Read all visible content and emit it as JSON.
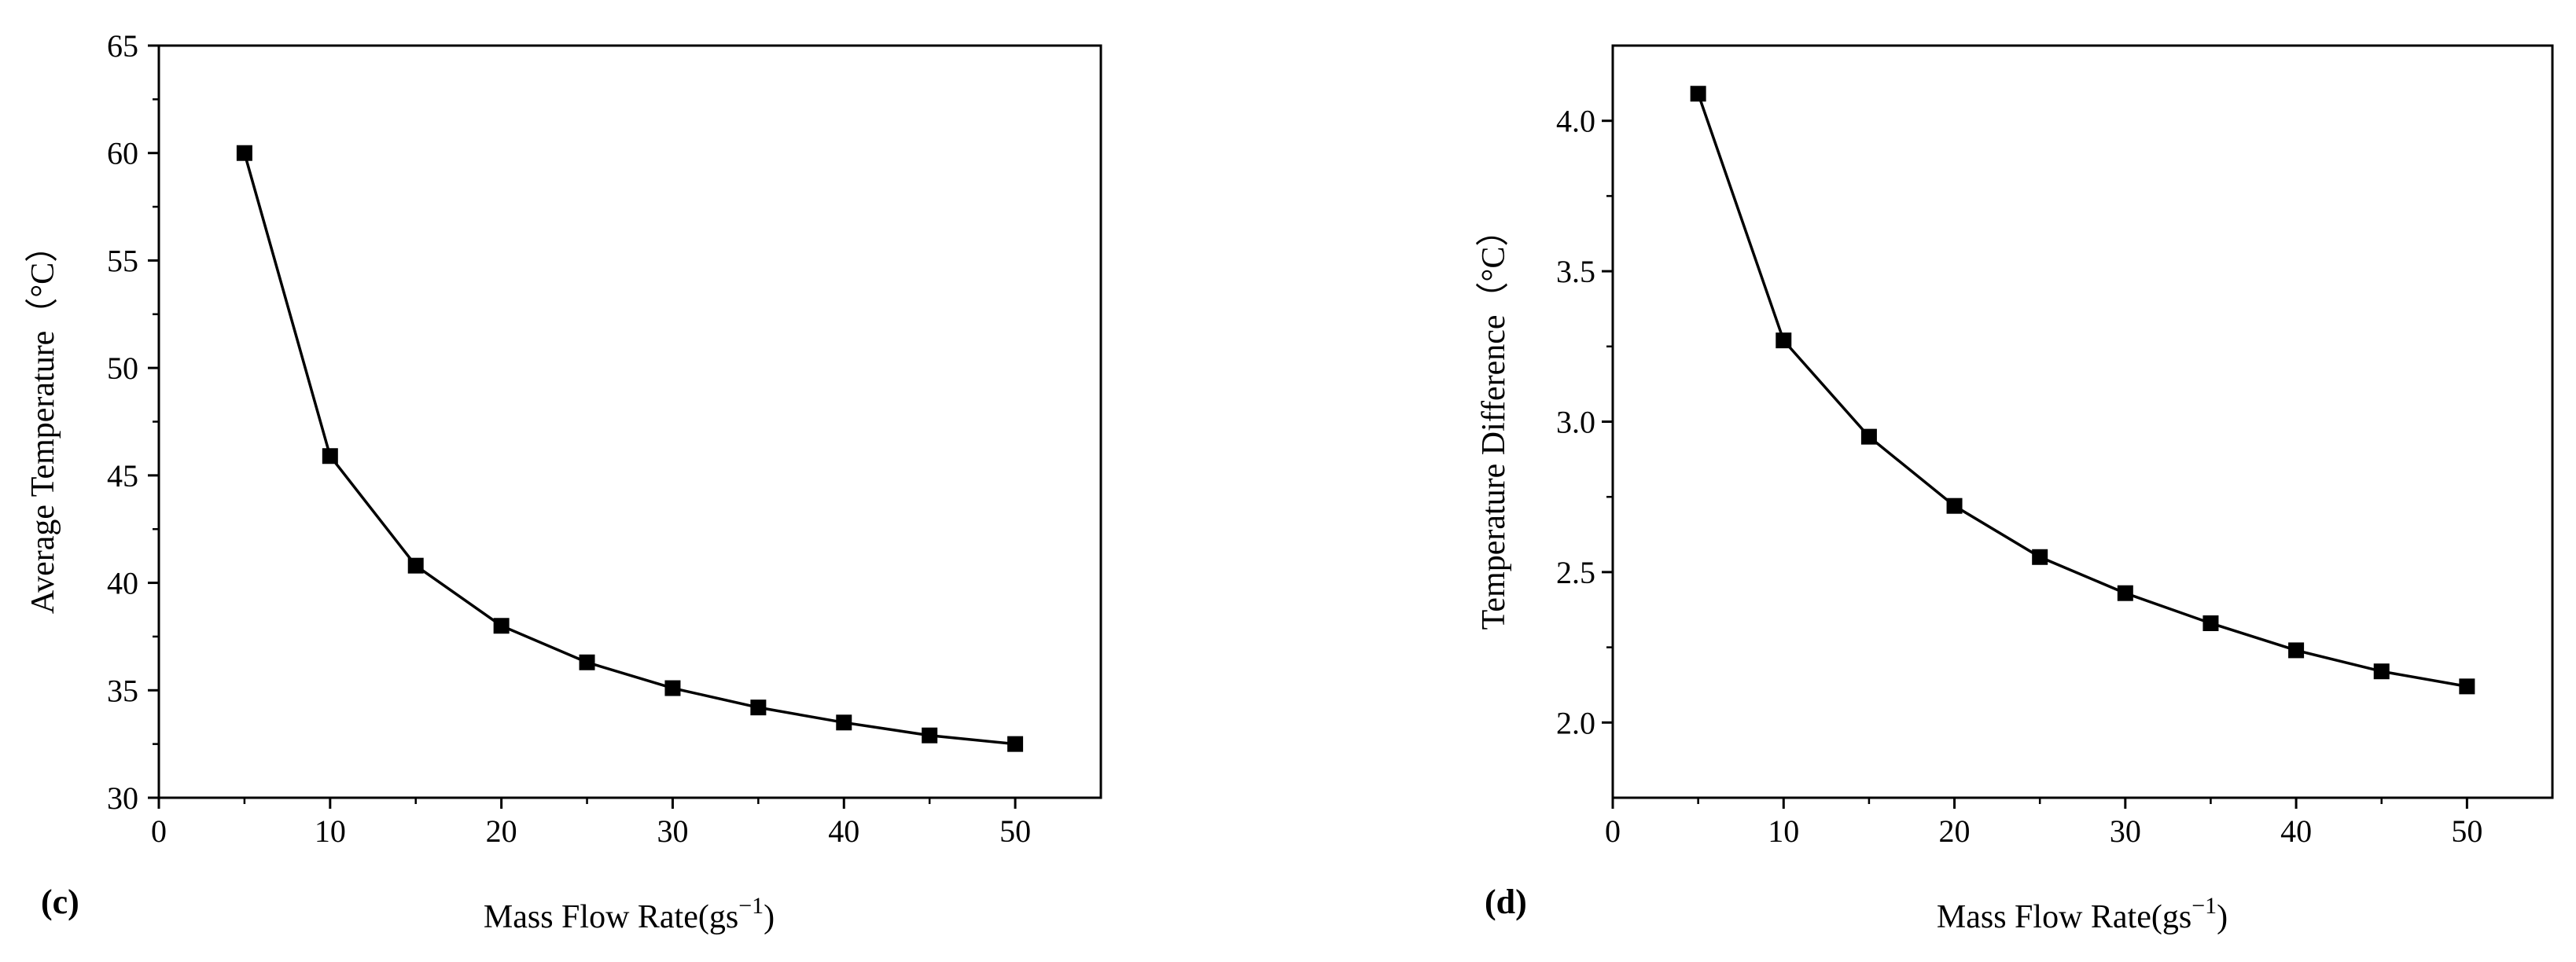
{
  "chart_data": [
    {
      "type": "line",
      "panel_label": "(c)",
      "xlabel": "Mass Flow Rate(gs",
      "xlabel_sup": "−1",
      "xlabel_close": ")",
      "ylabel": "Average Temperature（°C）",
      "xlim": [
        0,
        55
      ],
      "ylim": [
        30,
        65
      ],
      "xticks": [
        0,
        10,
        20,
        30,
        40,
        50
      ],
      "yticks": [
        30,
        35,
        40,
        45,
        50,
        55,
        60,
        65
      ],
      "ytick_decimals": 0,
      "marker": "square",
      "grid": false,
      "x": [
        5,
        10,
        15,
        20,
        25,
        30,
        35,
        40,
        45,
        50
      ],
      "y": [
        60.0,
        45.9,
        40.8,
        38.0,
        36.3,
        35.1,
        34.2,
        33.5,
        32.9,
        32.5
      ]
    },
    {
      "type": "line",
      "panel_label": "(d)",
      "xlabel": "Mass Flow Rate(gs",
      "xlabel_sup": "−1",
      "xlabel_close": ")",
      "ylabel": "Temperature Difference（°C）",
      "xlim": [
        0,
        55
      ],
      "ylim": [
        1.75,
        4.25
      ],
      "xticks": [
        0,
        10,
        20,
        30,
        40,
        50
      ],
      "yticks": [
        2.0,
        2.5,
        3.0,
        3.5,
        4.0
      ],
      "ytick_decimals": 1,
      "marker": "square",
      "grid": false,
      "x": [
        5,
        10,
        15,
        20,
        25,
        30,
        35,
        40,
        45,
        50
      ],
      "y": [
        4.09,
        3.27,
        2.95,
        2.72,
        2.55,
        2.43,
        2.33,
        2.24,
        2.17,
        2.12
      ]
    }
  ]
}
